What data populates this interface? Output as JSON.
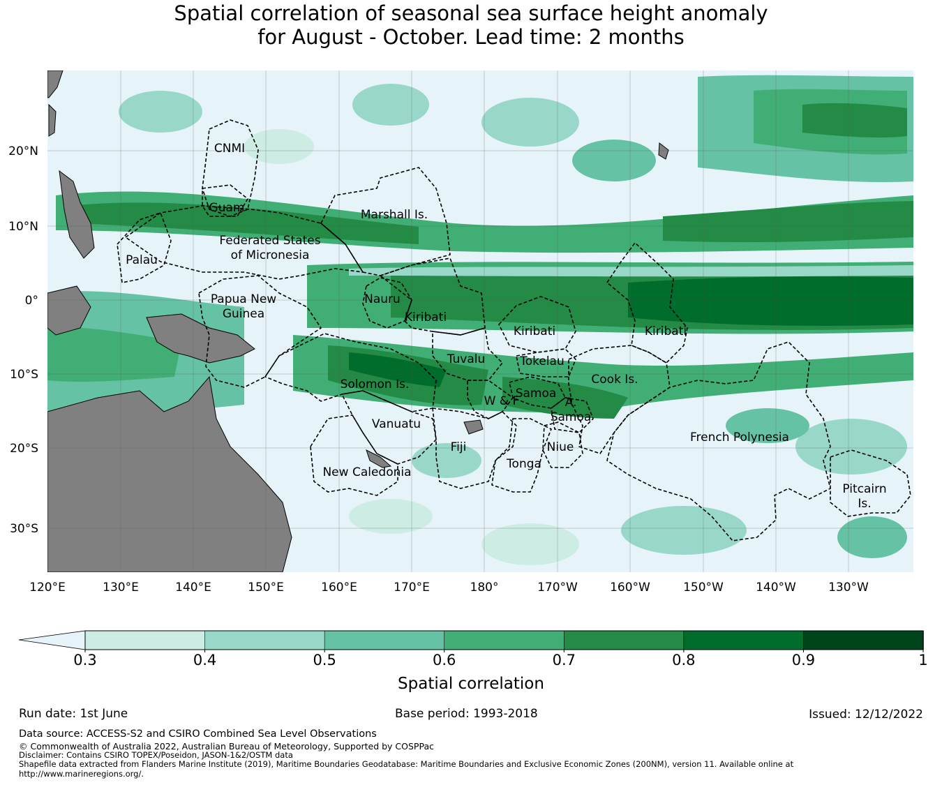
{
  "title": {
    "line1": "Spatial correlation of seasonal sea surface height anomaly",
    "line2": "for August - October. Lead time: 2 months"
  },
  "map": {
    "longitude_ticks": [
      "120°E",
      "130°E",
      "140°E",
      "150°E",
      "160°E",
      "170°E",
      "180°",
      "170°W",
      "160°W",
      "150°W",
      "140°W",
      "130°W"
    ],
    "latitude_ticks": [
      "20°N",
      "10°N",
      "0°",
      "10°S",
      "20°S",
      "30°S"
    ],
    "regions": [
      {
        "id": "cnmi",
        "label": [
          "CNMI"
        ]
      },
      {
        "id": "guam",
        "label": [
          "Guam"
        ]
      },
      {
        "id": "marshall",
        "label": [
          "Marshall Is."
        ]
      },
      {
        "id": "fsm",
        "label": [
          "Federated States",
          "of Micronesia"
        ]
      },
      {
        "id": "palau",
        "label": [
          "Palau"
        ]
      },
      {
        "id": "png",
        "label": [
          "Papua New",
          "Guinea"
        ]
      },
      {
        "id": "nauru",
        "label": [
          "Nauru"
        ]
      },
      {
        "id": "kiribati-west",
        "label": [
          "Kiribati"
        ]
      },
      {
        "id": "kiribati-phoenix",
        "label": [
          "Kiribati"
        ]
      },
      {
        "id": "kiribati-line",
        "label": [
          "Kiribati"
        ]
      },
      {
        "id": "tuvalu",
        "label": [
          "Tuvalu"
        ]
      },
      {
        "id": "tokelau",
        "label": [
          "Tokelau"
        ]
      },
      {
        "id": "cook",
        "label": [
          "Cook Is."
        ]
      },
      {
        "id": "solomon",
        "label": [
          "Solomon Is."
        ]
      },
      {
        "id": "samoa",
        "label": [
          "Samoa"
        ]
      },
      {
        "id": "wf",
        "label": [
          "W & F"
        ]
      },
      {
        "id": "asamoa",
        "label": [
          "A.",
          "Samoa"
        ]
      },
      {
        "id": "vanuatu",
        "label": [
          "Vanuatu"
        ]
      },
      {
        "id": "fiji",
        "label": [
          "Fiji"
        ]
      },
      {
        "id": "niue",
        "label": [
          "Niue"
        ]
      },
      {
        "id": "tonga",
        "label": [
          "Tonga"
        ]
      },
      {
        "id": "newcal",
        "label": [
          "New Caledonia"
        ]
      },
      {
        "id": "frpoly",
        "label": [
          "French Polynesia"
        ]
      },
      {
        "id": "pitcairn",
        "label": [
          "Pitcairn",
          "Is."
        ]
      }
    ]
  },
  "colorbar": {
    "label": "Spatial correlation",
    "ticks": [
      "0.3",
      "0.4",
      "0.5",
      "0.6",
      "0.7",
      "0.8",
      "0.9",
      "1"
    ],
    "below_min_color": "#e6f4f9",
    "colors": [
      "#ccece4",
      "#99d8c9",
      "#66c2a4",
      "#41ae76",
      "#238b45",
      "#006d2c",
      "#00441b"
    ]
  },
  "footer": {
    "run_date": "Run date: 1st June",
    "base_period": "Base period: 1993-2018",
    "issued": "Issued: 12/12/2022",
    "data_source": "Data source: ACCESS-S2 and CSIRO Combined Sea Level Observations",
    "copyright": "© Commonwealth of Australia 2022, Australian Bureau of Meteorology, Supported by COSPPac",
    "disclaimer": "Disclaimer: Contains CSIRO TOPEX/Poseidon, JASON-1&2/OSTM data",
    "shapefile_line1": "Shapefile data extracted from Flanders Marine Institute (2019), Maritime Boundaries Geodatabase: Maritime Boundaries and Exclusive Economic Zones (200NM), version 11. Available online at",
    "shapefile_line2": "http://www.marineregions.org/."
  }
}
